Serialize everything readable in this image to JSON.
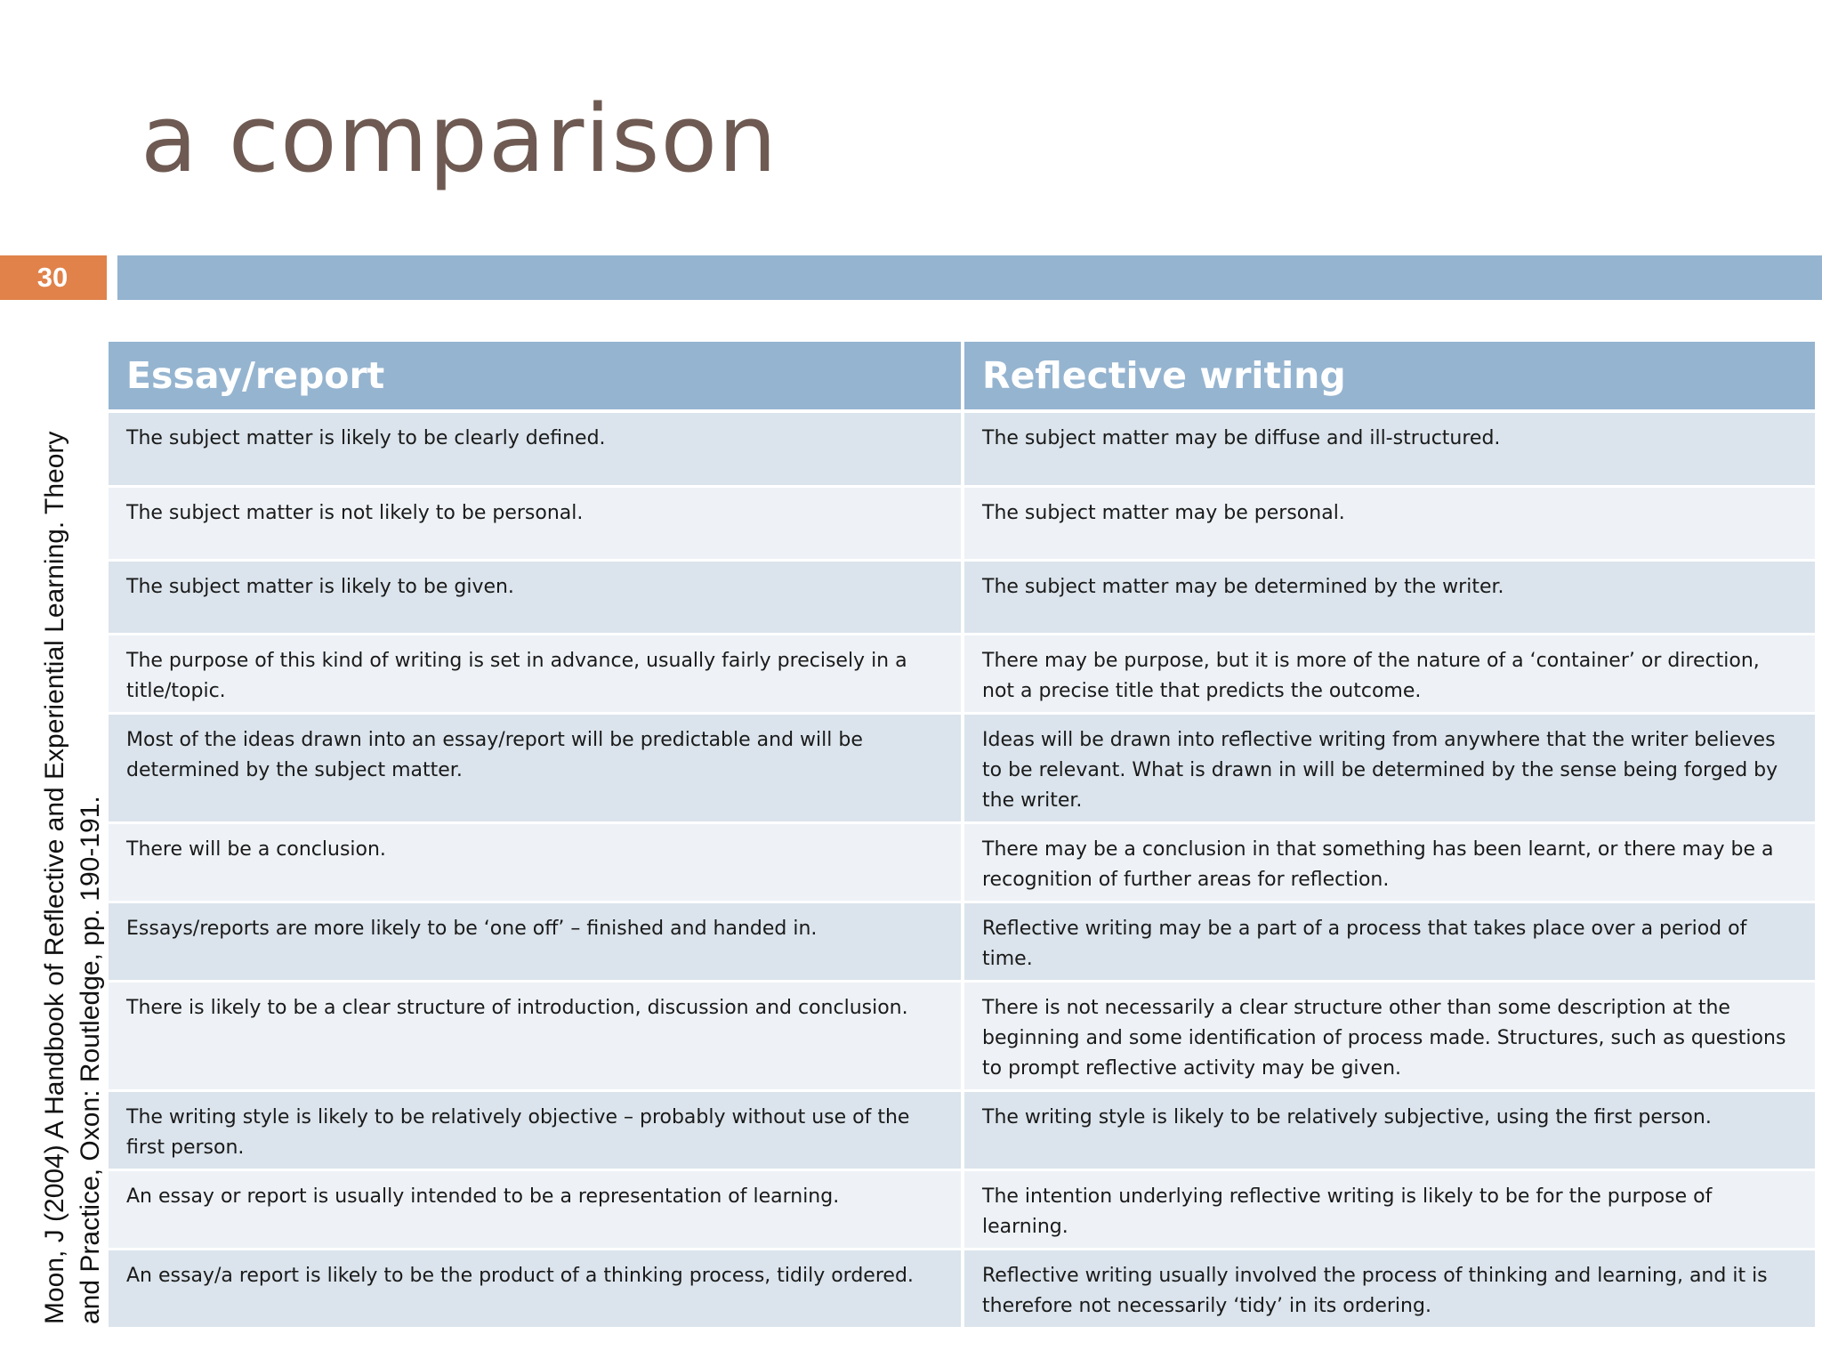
{
  "slide": {
    "title": "a comparison",
    "number": "30",
    "citation": "Moon, J (2004) A Handbook of Reflective and Experiential Learning. Theory and Practice, Oxon: Routledge, pp. 190-191."
  },
  "table": {
    "headers": [
      "Essay/report",
      "Reflective writing"
    ],
    "rows": [
      [
        "The subject matter is likely to be clearly defined.",
        "The subject matter may be diffuse and ill-structured."
      ],
      [
        "The subject matter is not likely to be personal.",
        "The subject matter may be personal."
      ],
      [
        "The subject matter is likely to be given.",
        "The subject matter may be determined by the writer."
      ],
      [
        "The purpose of this kind of writing is set in advance, usually fairly precisely in a title/topic.",
        "There may be purpose, but it is more of the nature of a ‘container’ or direction, not a precise title that predicts the outcome."
      ],
      [
        "Most of the ideas drawn into an essay/report will be predictable and will be determined by the subject matter.",
        "Ideas will be drawn into reflective writing from anywhere that the writer believes to be relevant. What is drawn in will be determined by the sense being forged by the writer."
      ],
      [
        "There will be a conclusion.",
        "There may be a conclusion in that something has been learnt, or there may be a recognition of further areas for reflection."
      ],
      [
        "Essays/reports are more likely to be ‘one off’ – finished and handed in.",
        "Reflective writing may be a part of a process that takes place over a period of time."
      ],
      [
        "There is likely to be a clear structure of introduction, discussion and conclusion.",
        "There is not necessarily a clear structure other than some description at the beginning and some identification of process made. Structures, such as questions to prompt reflective activity may be given."
      ],
      [
        "The writing style is likely to be relatively objective – probably without use of the first person.",
        "The writing style is likely to be relatively subjective, using the first person."
      ],
      [
        "An essay or report is usually intended to be a representation of learning.",
        "The intention underlying reflective writing is likely to be for the purpose of learning."
      ],
      [
        "An essay/a report is likely to be the product of a thinking process, tidily ordered.",
        "Reflective writing usually involved the process of thinking and learning, and it is therefore not necessarily ‘tidy’ in its ordering."
      ]
    ]
  },
  "colors": {
    "title": "#6e5a52",
    "slide_number_bg": "#e0824a",
    "accent_bar": "#95b4d0",
    "header_bg": "#95b4d0",
    "row_odd": "#dbe4ec",
    "row_even": "#eef2f6"
  }
}
